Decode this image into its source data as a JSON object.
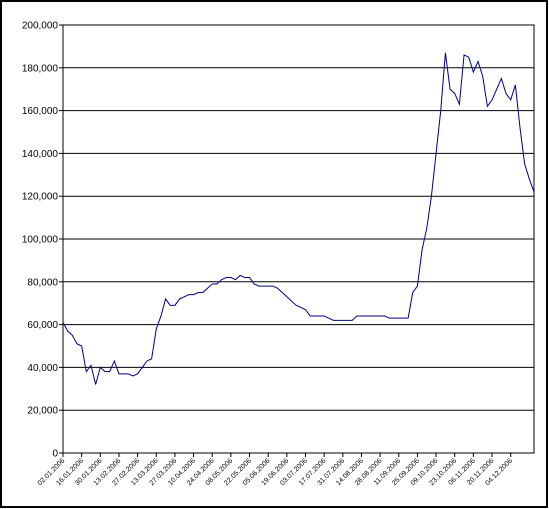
{
  "chart_data": {
    "type": "line",
    "categories": [
      "02.01.2006",
      null,
      null,
      null,
      "16.01.2006",
      null,
      null,
      null,
      "30.01.2006",
      null,
      null,
      null,
      "13.02.2006",
      null,
      null,
      null,
      "27.02.2006",
      null,
      null,
      null,
      "13.03.2006",
      null,
      null,
      null,
      "27.03.2006",
      null,
      null,
      null,
      "10.04.2006",
      null,
      null,
      null,
      "24.04.2006",
      null,
      null,
      null,
      "08.05.2006",
      null,
      null,
      null,
      "22.05.2006",
      null,
      null,
      null,
      "05.06.2006",
      null,
      null,
      null,
      "19.06.2006",
      null,
      null,
      null,
      "03.07.2006",
      null,
      null,
      null,
      "17.07.2006",
      null,
      null,
      null,
      "31.07.2006",
      null,
      null,
      null,
      "14.08.2006",
      null,
      null,
      null,
      "28.08.2006",
      null,
      null,
      null,
      "11.09.2006",
      null,
      null,
      null,
      "25.09.2006",
      null,
      null,
      null,
      "09.10.2006",
      null,
      null,
      null,
      "23.10.2006",
      null,
      null,
      null,
      "06.11.2006",
      null,
      null,
      null,
      "20.11.2006",
      null,
      null,
      null,
      "04.12.2006",
      null,
      null,
      null,
      null,
      null
    ],
    "values": [
      61000,
      57000,
      55000,
      51000,
      50000,
      38000,
      41000,
      32000,
      40000,
      38000,
      38000,
      43000,
      37000,
      37000,
      37000,
      36000,
      37000,
      40000,
      43000,
      44000,
      58000,
      64000,
      72000,
      69000,
      69000,
      72000,
      73000,
      74000,
      74000,
      75000,
      75000,
      77000,
      79000,
      79000,
      81000,
      82000,
      82000,
      81000,
      83000,
      82000,
      82000,
      79000,
      78000,
      78000,
      78000,
      78000,
      77000,
      75000,
      73000,
      71000,
      69000,
      68000,
      67000,
      64000,
      64000,
      64000,
      64000,
      63000,
      62000,
      62000,
      62000,
      62000,
      62000,
      64000,
      64000,
      64000,
      64000,
      64000,
      64000,
      64000,
      63000,
      63000,
      63000,
      63000,
      63000,
      75000,
      78000,
      95000,
      105000,
      120000,
      140000,
      160000,
      187000,
      170000,
      168000,
      163000,
      186000,
      185000,
      178000,
      183000,
      176000,
      162000,
      165000,
      170000,
      175000,
      168000,
      165000,
      172000,
      152000,
      135000,
      128000,
      122000
    ],
    "color": "#000080",
    "ylim": [
      0,
      200000
    ],
    "yticks": [
      0,
      {
        "value": 20000,
        "label": "20,000"
      },
      {
        "value": 40000,
        "label": "40,000"
      },
      {
        "value": 60000,
        "label": "60,000"
      },
      {
        "value": 80000,
        "label": "80,000"
      },
      {
        "value": 100000,
        "label": "100,000"
      },
      {
        "value": 120000,
        "label": "120,000"
      },
      {
        "value": 140000,
        "label": "140,000"
      },
      {
        "value": 160000,
        "label": "160,000"
      },
      {
        "value": 180000,
        "label": "180,000"
      },
      {
        "value": 200000,
        "label": "200,000"
      }
    ],
    "grid": true
  }
}
